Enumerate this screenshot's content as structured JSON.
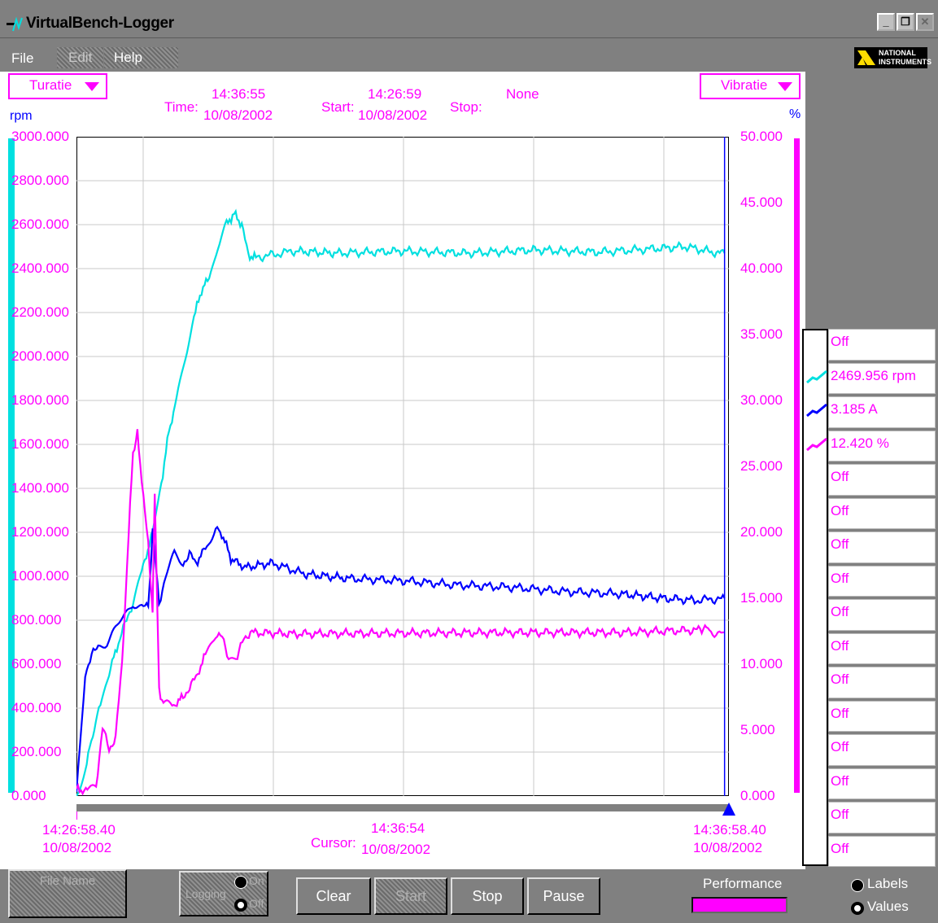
{
  "window": {
    "title": "VirtualBench-Logger",
    "controls": [
      "_",
      "❐",
      "✕"
    ]
  },
  "menu": {
    "file": "File",
    "edit": "Edit",
    "help": "Help"
  },
  "logo": {
    "line1": "NATIONAL",
    "line2": "INSTRUMENTS"
  },
  "header": {
    "left_channel": "Turatie",
    "right_channel": "Vibratie",
    "time_label": "Time:",
    "time_value": "14:36:55",
    "time_date": "10/08/2002",
    "start_label": "Start:",
    "start_value": "14:26:59",
    "start_date": "10/08/2002",
    "stop_label": "Stop:",
    "stop_value": "None",
    "left_unit": "rpm",
    "right_unit": "%"
  },
  "chart_data": {
    "type": "line",
    "left_axis": {
      "unit": "rpm",
      "range": [
        0,
        3000
      ],
      "ticks": [
        "3000.000",
        "2800.000",
        "2600.000",
        "2400.000",
        "2200.000",
        "2000.000",
        "1800.000",
        "1600.000",
        "1400.000",
        "1200.000",
        "1000.000",
        "800.000",
        "600.000",
        "400.000",
        "200.000",
        "0.000"
      ]
    },
    "right_axis": {
      "unit": "%",
      "range": [
        0,
        50
      ],
      "ticks": [
        "50.000",
        "45.000",
        "40.000",
        "35.000",
        "30.000",
        "25.000",
        "20.000",
        "15.000",
        "10.000",
        "5.000",
        "0.000"
      ]
    },
    "x_range_seconds": [
      0,
      600
    ],
    "grid": true,
    "series": [
      {
        "color": "#00e0e0",
        "axis": "left",
        "points": [
          [
            0,
            0
          ],
          [
            8,
            120
          ],
          [
            15,
            280
          ],
          [
            22,
            420
          ],
          [
            30,
            560
          ],
          [
            40,
            720
          ],
          [
            52,
            880
          ],
          [
            60,
            1020
          ],
          [
            70,
            1200
          ],
          [
            78,
            1420
          ],
          [
            85,
            1660
          ],
          [
            92,
            1800
          ],
          [
            100,
            2000
          ],
          [
            108,
            2180
          ],
          [
            115,
            2300
          ],
          [
            122,
            2360
          ],
          [
            130,
            2500
          ],
          [
            138,
            2600
          ],
          [
            145,
            2650
          ],
          [
            152,
            2600
          ],
          [
            158,
            2460
          ],
          [
            165,
            2450
          ],
          [
            200,
            2480
          ],
          [
            240,
            2470
          ],
          [
            300,
            2480
          ],
          [
            360,
            2470
          ],
          [
            420,
            2485
          ],
          [
            480,
            2475
          ],
          [
            530,
            2490
          ],
          [
            560,
            2500
          ],
          [
            590,
            2470
          ],
          [
            596,
            2470
          ]
        ]
      },
      {
        "color": "#0000ff",
        "axis": "left",
        "points": [
          [
            0,
            0
          ],
          [
            8,
            560
          ],
          [
            14,
            640
          ],
          [
            20,
            680
          ],
          [
            28,
            700
          ],
          [
            36,
            760
          ],
          [
            44,
            820
          ],
          [
            52,
            880
          ],
          [
            60,
            860
          ],
          [
            66,
            860
          ],
          [
            70,
            1200
          ],
          [
            76,
            880
          ],
          [
            82,
            1000
          ],
          [
            90,
            1100
          ],
          [
            98,
            1060
          ],
          [
            104,
            1100
          ],
          [
            110,
            1060
          ],
          [
            120,
            1140
          ],
          [
            128,
            1220
          ],
          [
            135,
            1180
          ],
          [
            142,
            1080
          ],
          [
            155,
            1040
          ],
          [
            180,
            1060
          ],
          [
            210,
            1010
          ],
          [
            250,
            990
          ],
          [
            300,
            980
          ],
          [
            350,
            960
          ],
          [
            400,
            950
          ],
          [
            450,
            930
          ],
          [
            500,
            920
          ],
          [
            540,
            900
          ],
          [
            570,
            890
          ],
          [
            596,
            900
          ]
        ]
      },
      {
        "color": "#ff00ff",
        "axis": "right",
        "points": [
          [
            0,
            0.5
          ],
          [
            10,
            0.4
          ],
          [
            18,
            0.8
          ],
          [
            24,
            5.2
          ],
          [
            30,
            3.5
          ],
          [
            36,
            4.5
          ],
          [
            42,
            10
          ],
          [
            48,
            20
          ],
          [
            52,
            26
          ],
          [
            56,
            27.5
          ],
          [
            60,
            24
          ],
          [
            66,
            19
          ],
          [
            70,
            14
          ],
          [
            72,
            23
          ],
          [
            76,
            8
          ],
          [
            80,
            7
          ],
          [
            88,
            6.8
          ],
          [
            98,
            7.5
          ],
          [
            110,
            9
          ],
          [
            120,
            11
          ],
          [
            128,
            12.3
          ],
          [
            134,
            12
          ],
          [
            140,
            10.5
          ],
          [
            148,
            10.5
          ],
          [
            154,
            12
          ],
          [
            160,
            12.4
          ],
          [
            200,
            12.3
          ],
          [
            300,
            12.35
          ],
          [
            400,
            12.4
          ],
          [
            500,
            12.4
          ],
          [
            575,
            12.6
          ],
          [
            578,
            13
          ],
          [
            582,
            12.4
          ],
          [
            596,
            12.42
          ]
        ]
      }
    ],
    "cursor_x_seconds": 596,
    "x_start": {
      "time": "14:26:58.40",
      "date": "10/08/2002"
    },
    "x_end": {
      "time": "14:36:58.40",
      "date": "10/08/2002"
    },
    "cursor": {
      "label": "Cursor:",
      "time": "14:36:54",
      "date": "10/08/2002"
    }
  },
  "legend": {
    "rows": [
      {
        "text": "Off",
        "color": null
      },
      {
        "text": "2469.956 rpm",
        "color": "#00e0e0"
      },
      {
        "text": "3.185 A",
        "color": "#0000ff"
      },
      {
        "text": "12.420 %",
        "color": "#ff00ff"
      },
      {
        "text": "Off",
        "color": null
      },
      {
        "text": "Off",
        "color": null
      },
      {
        "text": "Off",
        "color": null
      },
      {
        "text": "Off",
        "color": null
      },
      {
        "text": "Off",
        "color": null
      },
      {
        "text": "Off",
        "color": null
      },
      {
        "text": "Off",
        "color": null
      },
      {
        "text": "Off",
        "color": null
      },
      {
        "text": "Off",
        "color": null
      },
      {
        "text": "Off",
        "color": null
      },
      {
        "text": "Off",
        "color": null
      },
      {
        "text": "Off",
        "color": null
      }
    ]
  },
  "bottom": {
    "file_name": "File Name",
    "logging": "Logging",
    "on": "On",
    "off": "Off",
    "clear": "Clear",
    "start": "Start",
    "stop": "Stop",
    "pause": "Pause",
    "performance": "Performance",
    "labels": "Labels",
    "values": "Values"
  }
}
